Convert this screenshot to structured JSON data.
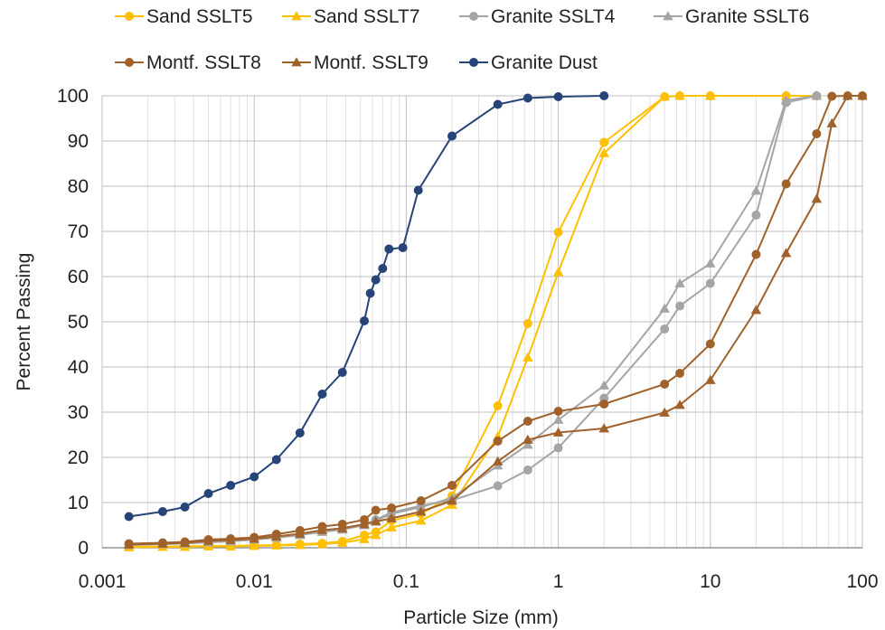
{
  "chart_data": {
    "type": "scatter",
    "xscale": "log",
    "xlabel": "Particle Size (mm)",
    "ylabel": "Percent Passing",
    "xlim": [
      0.001,
      100
    ],
    "ylim": [
      0,
      100
    ],
    "x_ticks": [
      "0.001",
      "0.01",
      "0.1",
      "1",
      "10",
      "100"
    ],
    "y_ticks": [
      "0",
      "10",
      "20",
      "30",
      "40",
      "50",
      "60",
      "70",
      "80",
      "90",
      "100"
    ],
    "grid": true,
    "legend_position": "top",
    "series": [
      {
        "name": "Sand SSLT5",
        "color": "#FFC000",
        "marker": "circle",
        "x": [
          0.0015,
          0.0025,
          0.0035,
          0.005,
          0.007,
          0.01,
          0.014,
          0.02,
          0.028,
          0.038,
          0.053,
          0.063,
          0.08,
          0.125,
          0.2,
          0.4,
          0.63,
          1,
          2,
          5,
          6.3,
          10,
          31.5,
          50
        ],
        "y": [
          0.2,
          0.3,
          0.3,
          0.4,
          0.4,
          0.5,
          0.6,
          0.8,
          1,
          1.4,
          2.8,
          3.5,
          6,
          7.5,
          11.5,
          31.4,
          49.6,
          69.8,
          89.7,
          99.8,
          100,
          100,
          100,
          100
        ]
      },
      {
        "name": "Sand SSLT7",
        "color": "#FFC000",
        "marker": "triangle",
        "x": [
          0.0015,
          0.0025,
          0.0035,
          0.005,
          0.007,
          0.01,
          0.014,
          0.02,
          0.028,
          0.038,
          0.053,
          0.063,
          0.08,
          0.125,
          0.2,
          0.4,
          0.63,
          1,
          2,
          5,
          6.3,
          10,
          31.5,
          50
        ],
        "y": [
          0.1,
          0.2,
          0.2,
          0.3,
          0.3,
          0.4,
          0.5,
          0.6,
          0.8,
          1.1,
          1.9,
          2.8,
          4.5,
          6,
          9.5,
          24.6,
          42.1,
          61,
          87.3,
          99.8,
          100,
          100,
          100,
          100
        ]
      },
      {
        "name": "Granite SSLT4",
        "color": "#A5A5A5",
        "marker": "circle",
        "x": [
          0.0015,
          0.0025,
          0.0035,
          0.005,
          0.007,
          0.01,
          0.014,
          0.02,
          0.028,
          0.038,
          0.053,
          0.063,
          0.08,
          0.125,
          0.2,
          0.4,
          0.63,
          1,
          2,
          5,
          6.3,
          10,
          20,
          31.5,
          50
        ],
        "y": [
          0.7,
          0.9,
          1,
          1.4,
          1.6,
          2,
          2.5,
          3,
          3.8,
          4.3,
          5.2,
          6.2,
          7.8,
          9.3,
          10.5,
          13.7,
          17.2,
          22.1,
          33.1,
          48.4,
          53.5,
          58.5,
          73.6,
          98.5,
          100
        ]
      },
      {
        "name": "Granite SSLT6",
        "color": "#A5A5A5",
        "marker": "triangle",
        "x": [
          0.0015,
          0.0025,
          0.0035,
          0.005,
          0.007,
          0.01,
          0.014,
          0.02,
          0.028,
          0.038,
          0.053,
          0.063,
          0.08,
          0.125,
          0.2,
          0.4,
          0.63,
          1,
          2,
          5,
          6.3,
          10,
          20,
          31.5,
          50
        ],
        "y": [
          0.6,
          0.8,
          0.9,
          1.2,
          1.4,
          1.8,
          2.2,
          2.8,
          3.5,
          4,
          5,
          6,
          7.5,
          9,
          11,
          18.2,
          22.8,
          28.3,
          35.9,
          52.9,
          58.5,
          62.9,
          79,
          99,
          100
        ]
      },
      {
        "name": "Montf. SSLT8",
        "color": "#A0612A",
        "marker": "circle",
        "x": [
          0.0015,
          0.0025,
          0.0035,
          0.005,
          0.007,
          0.01,
          0.014,
          0.02,
          0.028,
          0.038,
          0.053,
          0.063,
          0.08,
          0.125,
          0.2,
          0.4,
          0.63,
          1,
          2,
          5,
          6.3,
          10,
          20,
          31.5,
          50,
          63,
          80,
          100
        ],
        "y": [
          0.9,
          1.1,
          1.3,
          1.8,
          2,
          2.3,
          3,
          3.8,
          4.7,
          5.2,
          6.2,
          8.3,
          8.8,
          10.4,
          13.8,
          23.6,
          28,
          30.2,
          31.8,
          36.2,
          38.6,
          45.1,
          64.9,
          80.5,
          91.6,
          99.9,
          100,
          100
        ]
      },
      {
        "name": "Montf. SSLT9",
        "color": "#A0612A",
        "marker": "triangle",
        "x": [
          0.0015,
          0.0025,
          0.0035,
          0.005,
          0.007,
          0.01,
          0.014,
          0.02,
          0.028,
          0.038,
          0.053,
          0.063,
          0.08,
          0.125,
          0.2,
          0.4,
          0.63,
          1,
          2,
          5,
          6.3,
          10,
          20,
          31.5,
          50,
          63,
          80,
          100
        ],
        "y": [
          0.7,
          0.9,
          1.1,
          1.5,
          1.7,
          2,
          2.5,
          3.1,
          3.9,
          4.3,
          5.2,
          5.8,
          6.5,
          8,
          10.4,
          19.1,
          23.9,
          25.5,
          26.4,
          29.9,
          31.6,
          37.1,
          52.6,
          65.2,
          77.2,
          93.9,
          100,
          100
        ]
      },
      {
        "name": "Granite Dust",
        "color": "#264478",
        "marker": "circle",
        "x": [
          0.0015,
          0.0025,
          0.0035,
          0.005,
          0.007,
          0.01,
          0.014,
          0.02,
          0.028,
          0.038,
          0.053,
          0.058,
          0.063,
          0.07,
          0.077,
          0.095,
          0.12,
          0.2,
          0.4,
          0.63,
          1,
          2
        ],
        "y": [
          6.9,
          8,
          9,
          12,
          13.8,
          15.7,
          19.5,
          25.4,
          34,
          38.8,
          50.2,
          56.3,
          59.3,
          61.8,
          66.1,
          66.4,
          79.1,
          91.1,
          98.1,
          99.5,
          99.8,
          100
        ]
      }
    ]
  }
}
